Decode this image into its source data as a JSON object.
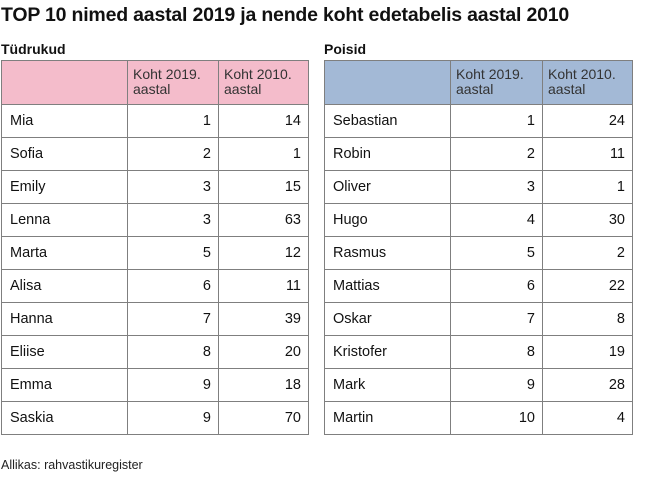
{
  "title": "TOP 10 nimed aastal 2019 ja nende koht edetabelis aastal 2010",
  "girls": {
    "heading": "Tüdrukud",
    "col_name": "",
    "col_2019": "Koht 2019. aastal",
    "col_2010": "Koht 2010. aastal",
    "rows": [
      {
        "name": "Mia",
        "rank2019": "1",
        "rank2010": "14"
      },
      {
        "name": "Sofia",
        "rank2019": "2",
        "rank2010": "1"
      },
      {
        "name": "Emily",
        "rank2019": "3",
        "rank2010": "15"
      },
      {
        "name": "Lenna",
        "rank2019": "3",
        "rank2010": "63"
      },
      {
        "name": "Marta",
        "rank2019": "5",
        "rank2010": "12"
      },
      {
        "name": "Alisa",
        "rank2019": "6",
        "rank2010": "11"
      },
      {
        "name": "Hanna",
        "rank2019": "7",
        "rank2010": "39"
      },
      {
        "name": "Eliise",
        "rank2019": "8",
        "rank2010": "20"
      },
      {
        "name": "Emma",
        "rank2019": "9",
        "rank2010": "18"
      },
      {
        "name": "Saskia",
        "rank2019": "9",
        "rank2010": "70"
      }
    ]
  },
  "boys": {
    "heading": "Poisid",
    "col_name": "",
    "col_2019": "Koht 2019. aastal",
    "col_2010": "Koht 2010. aastal",
    "rows": [
      {
        "name": "Sebastian",
        "rank2019": "1",
        "rank2010": "24"
      },
      {
        "name": "Robin",
        "rank2019": "2",
        "rank2010": "11"
      },
      {
        "name": "Oliver",
        "rank2019": "3",
        "rank2010": "1"
      },
      {
        "name": "Hugo",
        "rank2019": "4",
        "rank2010": "30"
      },
      {
        "name": "Rasmus",
        "rank2019": "5",
        "rank2010": "2"
      },
      {
        "name": "Mattias",
        "rank2019": "6",
        "rank2010": "22"
      },
      {
        "name": "Oskar",
        "rank2019": "7",
        "rank2010": "8"
      },
      {
        "name": "Kristofer",
        "rank2019": "8",
        "rank2010": "19"
      },
      {
        "name": "Mark",
        "rank2019": "9",
        "rank2010": "28"
      },
      {
        "name": "Martin",
        "rank2019": "10",
        "rank2010": "4"
      }
    ]
  },
  "source": "Allikas: rahvastikuregister",
  "colors": {
    "girls_header": "#f4bccb",
    "boys_header": "#a3b9d6",
    "border": "#7f7f7f"
  }
}
